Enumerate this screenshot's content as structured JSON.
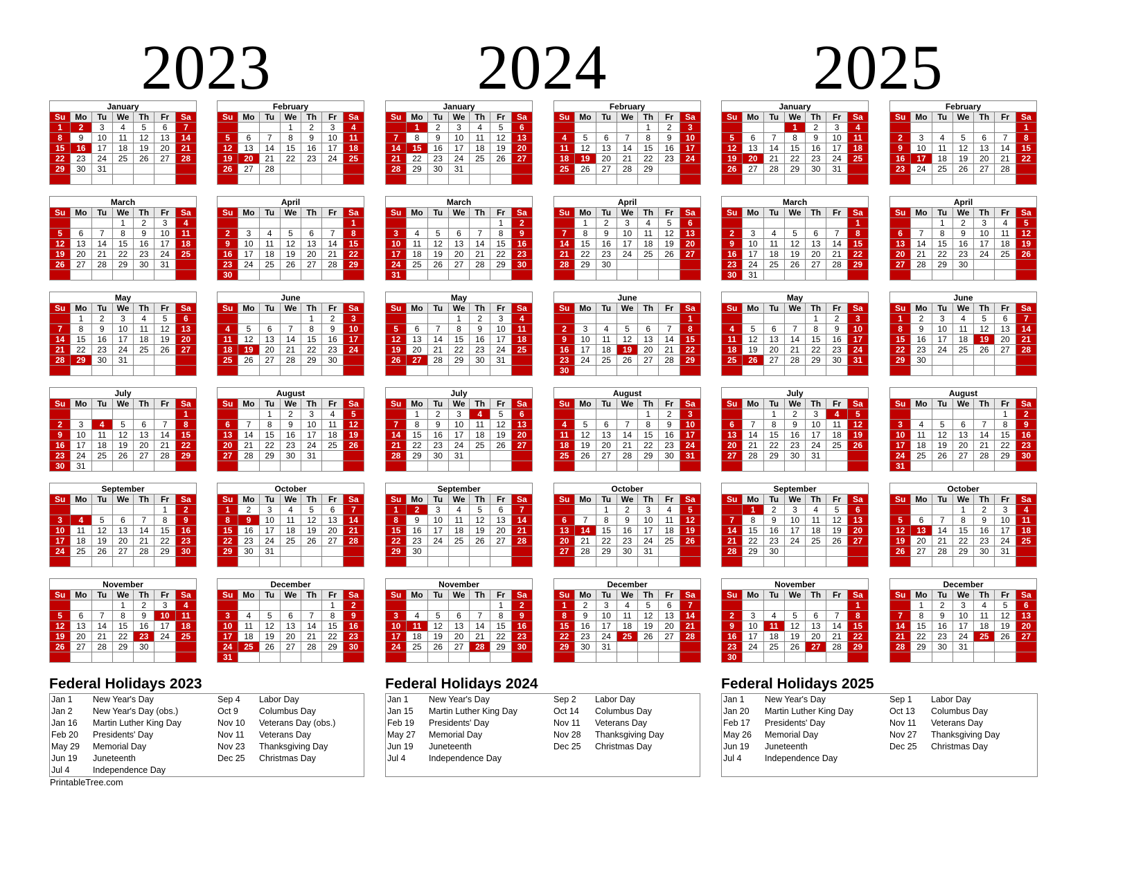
{
  "weekdays": [
    "Su",
    "Mo",
    "Tu",
    "We",
    "Th",
    "Fr",
    "Sa"
  ],
  "colors": {
    "weekend_red": "#c00000",
    "header_gray": "#e8e8e8",
    "grid": "#808080"
  },
  "years": [
    {
      "year": "2023",
      "months": [
        {
          "name": "January",
          "start": 0,
          "days": 31,
          "holidays": [
            2,
            16
          ]
        },
        {
          "name": "February",
          "start": 3,
          "days": 28,
          "holidays": [
            20
          ]
        },
        {
          "name": "March",
          "start": 3,
          "days": 31,
          "holidays": []
        },
        {
          "name": "April",
          "start": 6,
          "days": 30,
          "holidays": []
        },
        {
          "name": "May",
          "start": 1,
          "days": 31,
          "holidays": [
            29
          ]
        },
        {
          "name": "June",
          "start": 4,
          "days": 30,
          "holidays": [
            19
          ]
        },
        {
          "name": "July",
          "start": 6,
          "days": 31,
          "holidays": [
            4
          ]
        },
        {
          "name": "August",
          "start": 2,
          "days": 31,
          "holidays": []
        },
        {
          "name": "September",
          "start": 5,
          "days": 30,
          "holidays": [
            4
          ]
        },
        {
          "name": "October",
          "start": 0,
          "days": 31,
          "holidays": [
            9
          ]
        },
        {
          "name": "November",
          "start": 3,
          "days": 30,
          "holidays": [
            10,
            23
          ]
        },
        {
          "name": "December",
          "start": 5,
          "days": 31,
          "holidays": [
            25
          ]
        }
      ],
      "holidays_title": "Federal Holidays 2023",
      "holidays_left": [
        {
          "date": "Jan 1",
          "name": "New Year's Day"
        },
        {
          "date": "Jan 2",
          "name": "New Year's Day (obs.)"
        },
        {
          "date": "Jan 16",
          "name": "Martin Luther King Day"
        },
        {
          "date": "Feb 20",
          "name": "Presidents' Day"
        },
        {
          "date": "May 29",
          "name": "Memorial Day"
        },
        {
          "date": "Jun 19",
          "name": "Juneteenth"
        },
        {
          "date": "Jul 4",
          "name": "Independence Day"
        }
      ],
      "holidays_right": [
        {
          "date": "Sep 4",
          "name": "Labor Day"
        },
        {
          "date": "Oct 9",
          "name": "Columbus Day"
        },
        {
          "date": "Nov 10",
          "name": "Veterans Day (obs.)"
        },
        {
          "date": "Nov 11",
          "name": "Veterans Day"
        },
        {
          "date": "Nov 23",
          "name": "Thanksgiving Day"
        },
        {
          "date": "Dec 25",
          "name": "Christmas Day"
        }
      ]
    },
    {
      "year": "2024",
      "months": [
        {
          "name": "January",
          "start": 1,
          "days": 31,
          "holidays": [
            1,
            15
          ]
        },
        {
          "name": "February",
          "start": 4,
          "days": 29,
          "holidays": [
            19
          ]
        },
        {
          "name": "March",
          "start": 5,
          "days": 31,
          "holidays": []
        },
        {
          "name": "April",
          "start": 1,
          "days": 30,
          "holidays": []
        },
        {
          "name": "May",
          "start": 3,
          "days": 31,
          "holidays": [
            27
          ]
        },
        {
          "name": "June",
          "start": 6,
          "days": 30,
          "holidays": [
            19
          ]
        },
        {
          "name": "July",
          "start": 1,
          "days": 31,
          "holidays": [
            4
          ]
        },
        {
          "name": "August",
          "start": 4,
          "days": 31,
          "holidays": []
        },
        {
          "name": "September",
          "start": 0,
          "days": 30,
          "holidays": [
            2
          ]
        },
        {
          "name": "October",
          "start": 2,
          "days": 31,
          "holidays": [
            14
          ]
        },
        {
          "name": "November",
          "start": 5,
          "days": 30,
          "holidays": [
            11,
            28
          ]
        },
        {
          "name": "December",
          "start": 0,
          "days": 31,
          "holidays": [
            25
          ]
        }
      ],
      "holidays_title": "Federal Holidays 2024",
      "holidays_left": [
        {
          "date": "Jan 1",
          "name": "New Year's Day"
        },
        {
          "date": "Jan 15",
          "name": "Martin Luther King Day"
        },
        {
          "date": "Feb 19",
          "name": "Presidents' Day"
        },
        {
          "date": "May 27",
          "name": "Memorial Day"
        },
        {
          "date": "Jun 19",
          "name": "Juneteenth"
        },
        {
          "date": "Jul 4",
          "name": "Independence Day"
        }
      ],
      "holidays_right": [
        {
          "date": "Sep 2",
          "name": "Labor Day"
        },
        {
          "date": "Oct 14",
          "name": "Columbus Day"
        },
        {
          "date": "Nov 11",
          "name": "Veterans Day"
        },
        {
          "date": "Nov 28",
          "name": "Thanksgiving Day"
        },
        {
          "date": "Dec 25",
          "name": "Christmas Day"
        }
      ]
    },
    {
      "year": "2025",
      "months": [
        {
          "name": "January",
          "start": 3,
          "days": 31,
          "holidays": [
            1,
            20
          ]
        },
        {
          "name": "February",
          "start": 6,
          "days": 28,
          "holidays": [
            17
          ]
        },
        {
          "name": "March",
          "start": 6,
          "days": 31,
          "holidays": []
        },
        {
          "name": "April",
          "start": 2,
          "days": 30,
          "holidays": []
        },
        {
          "name": "May",
          "start": 4,
          "days": 31,
          "holidays": [
            26
          ]
        },
        {
          "name": "June",
          "start": 0,
          "days": 30,
          "holidays": [
            19
          ]
        },
        {
          "name": "July",
          "start": 2,
          "days": 31,
          "holidays": [
            4
          ]
        },
        {
          "name": "August",
          "start": 5,
          "days": 31,
          "holidays": []
        },
        {
          "name": "September",
          "start": 1,
          "days": 30,
          "holidays": [
            1
          ]
        },
        {
          "name": "October",
          "start": 3,
          "days": 31,
          "holidays": [
            13
          ]
        },
        {
          "name": "November",
          "start": 6,
          "days": 30,
          "holidays": [
            11,
            27
          ]
        },
        {
          "name": "December",
          "start": 1,
          "days": 31,
          "holidays": [
            25
          ]
        }
      ],
      "holidays_title": "Federal Holidays 2025",
      "holidays_left": [
        {
          "date": "Jan 1",
          "name": "New Year's Day"
        },
        {
          "date": "Jan 20",
          "name": "Martin Luther King Day"
        },
        {
          "date": "Feb 17",
          "name": "Presidents' Day"
        },
        {
          "date": "May 26",
          "name": "Memorial Day"
        },
        {
          "date": "Jun 19",
          "name": "Juneteenth"
        },
        {
          "date": "Jul 4",
          "name": "Independence Day"
        }
      ],
      "holidays_right": [
        {
          "date": "Sep 1",
          "name": "Labor Day"
        },
        {
          "date": "Oct 13",
          "name": "Columbus Day"
        },
        {
          "date": "Nov 11",
          "name": "Veterans Day"
        },
        {
          "date": "Nov 27",
          "name": "Thanksgiving Day"
        },
        {
          "date": "Dec 25",
          "name": "Christmas Day"
        }
      ]
    }
  ],
  "credit": "PrintableTree.com"
}
